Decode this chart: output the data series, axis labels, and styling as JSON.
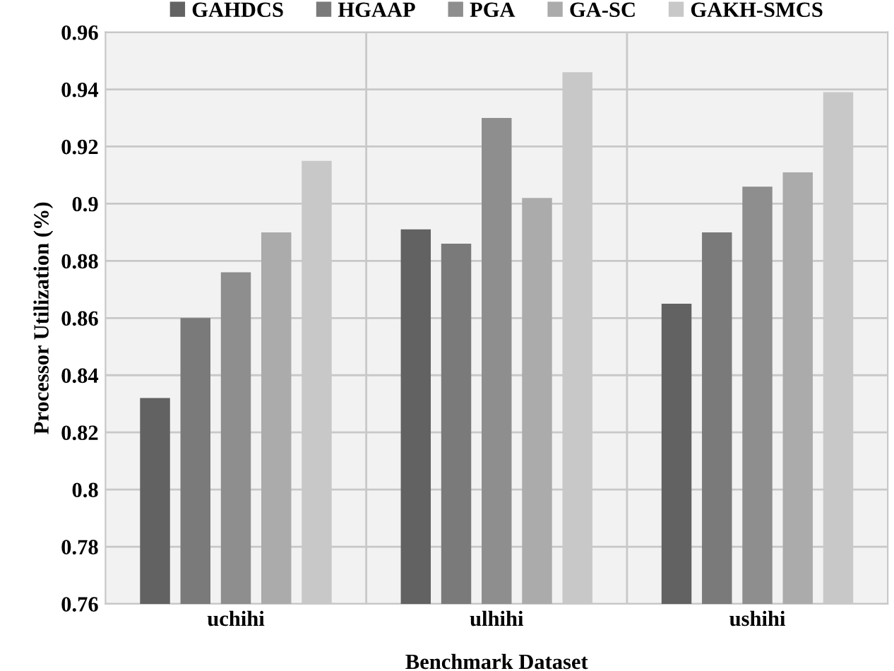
{
  "chart_data": {
    "type": "bar",
    "xlabel": "Benchmark Dataset",
    "ylabel": "Processor Utilization (%)",
    "categories": [
      "uchihi",
      "ulhihi",
      "ushihi"
    ],
    "series": [
      {
        "name": "GAHDCS",
        "color": "#626262",
        "values": [
          0.832,
          0.891,
          0.865
        ]
      },
      {
        "name": "HGAAP",
        "color": "#7a7a7a",
        "values": [
          0.86,
          0.886,
          0.89
        ]
      },
      {
        "name": "PGA",
        "color": "#8e8e8e",
        "values": [
          0.876,
          0.93,
          0.906
        ]
      },
      {
        "name": "GA-SC",
        "color": "#ababab",
        "values": [
          0.89,
          0.902,
          0.911
        ]
      },
      {
        "name": "GAKH-SMCS",
        "color": "#c8c8c8",
        "values": [
          0.915,
          0.946,
          0.939
        ]
      }
    ],
    "ylim": [
      0.76,
      0.96
    ],
    "yticks": [
      0.76,
      0.78,
      0.8,
      0.82,
      0.84,
      0.86,
      0.88,
      0.9,
      0.92,
      0.94,
      0.96
    ],
    "grid": true,
    "legend": "top"
  }
}
